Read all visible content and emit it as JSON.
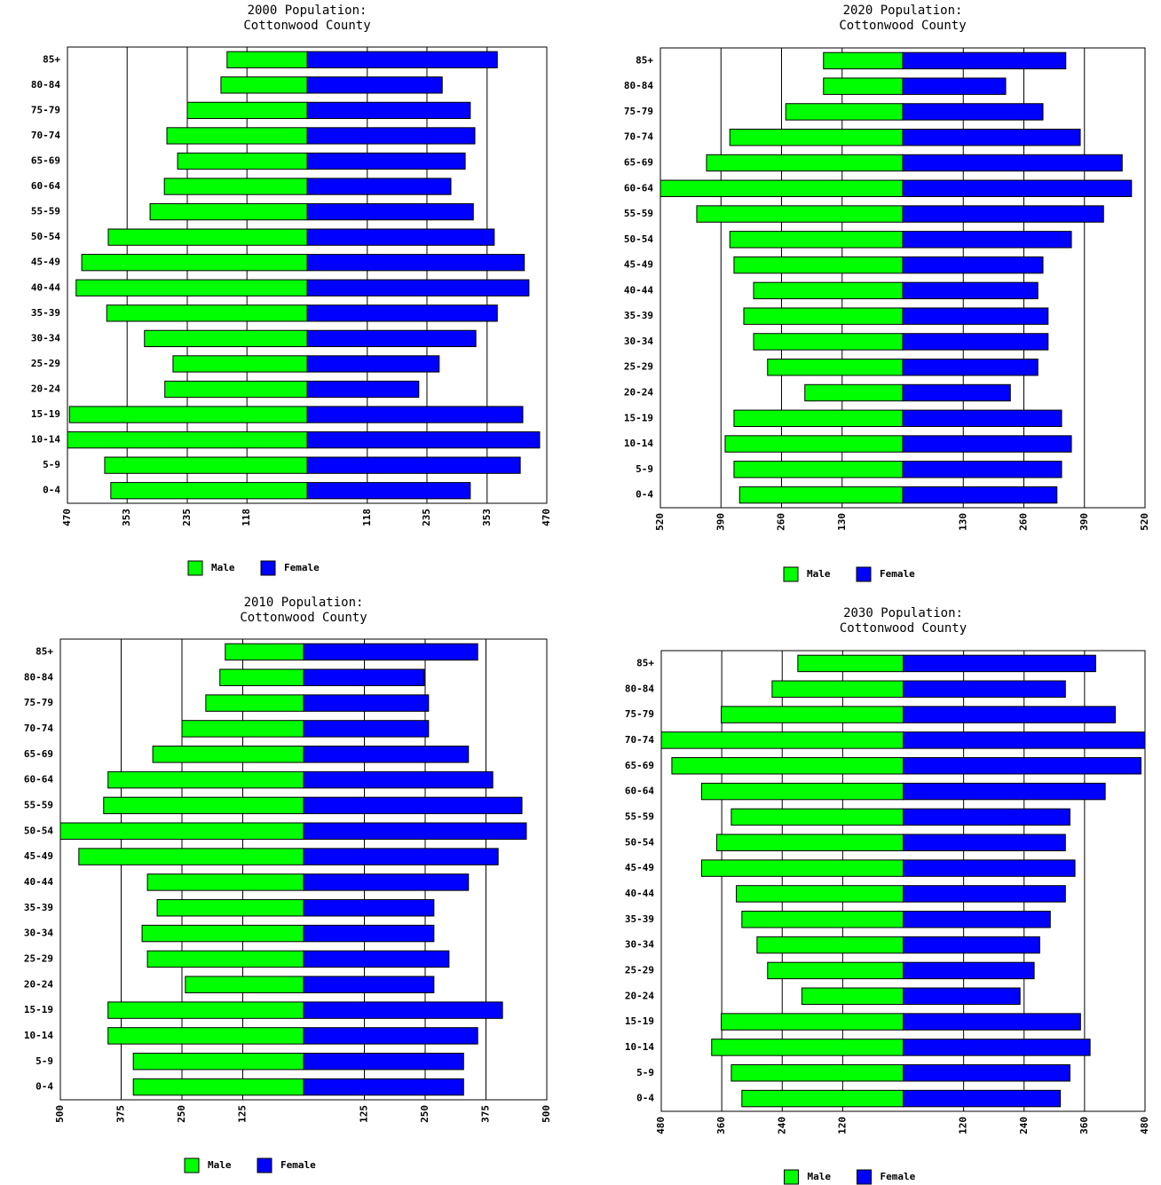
{
  "chart_data": [
    {
      "type": "pyramid",
      "title": "2000 Population:",
      "subtitle": "Cottonwood County",
      "categories": [
        "85+",
        "80-84",
        "75-79",
        "70-74",
        "65-69",
        "60-64",
        "55-59",
        "50-54",
        "45-49",
        "40-44",
        "35-39",
        "30-34",
        "25-29",
        "20-24",
        "15-19",
        "10-14",
        "5-9",
        "0-4"
      ],
      "series": [
        {
          "name": "Male",
          "color": "#00ff00",
          "values": [
            157,
            169,
            235,
            275,
            254,
            280,
            308,
            390,
            442,
            453,
            393,
            319,
            263,
            279,
            466,
            470,
            397,
            385
          ]
        },
        {
          "name": "Female",
          "color": "#0000ff",
          "values": [
            373,
            265,
            320,
            329,
            310,
            282,
            326,
            367,
            426,
            435,
            373,
            331,
            259,
            219,
            423,
            456,
            418,
            320
          ]
        }
      ],
      "xlim": [
        0,
        470
      ],
      "xticks": [
        118,
        235,
        353,
        470
      ],
      "grid": true
    },
    {
      "type": "pyramid",
      "title": "2020 Population:",
      "subtitle": "Cottonwood County",
      "categories": [
        "85+",
        "80-84",
        "75-79",
        "70-74",
        "65-69",
        "60-64",
        "55-59",
        "50-54",
        "45-49",
        "40-44",
        "35-39",
        "30-34",
        "25-29",
        "20-24",
        "15-19",
        "10-14",
        "5-9",
        "0-4"
      ],
      "series": [
        {
          "name": "Male",
          "color": "#00ff00",
          "values": [
            170,
            170,
            251,
            371,
            421,
            520,
            442,
            371,
            362,
            320,
            341,
            320,
            290,
            210,
            362,
            381,
            362,
            350
          ]
        },
        {
          "name": "Female",
          "color": "#0000ff",
          "values": [
            350,
            221,
            301,
            381,
            471,
            491,
            431,
            362,
            301,
            290,
            312,
            312,
            290,
            231,
            341,
            362,
            341,
            331
          ]
        }
      ],
      "xlim": [
        0,
        520
      ],
      "xticks": [
        130,
        260,
        390,
        520
      ],
      "grid": true
    },
    {
      "type": "pyramid",
      "title": "2010 Population:",
      "subtitle": "Cottonwood County",
      "categories": [
        "85+",
        "80-84",
        "75-79",
        "70-74",
        "65-69",
        "60-64",
        "55-59",
        "50-54",
        "45-49",
        "40-44",
        "35-39",
        "30-34",
        "25-29",
        "20-24",
        "15-19",
        "10-14",
        "5-9",
        "0-4"
      ],
      "series": [
        {
          "name": "Male",
          "color": "#00ff00",
          "values": [
            161,
            172,
            201,
            250,
            310,
            402,
            411,
            500,
            462,
            321,
            301,
            332,
            321,
            243,
            402,
            402,
            350,
            350
          ]
        },
        {
          "name": "Female",
          "color": "#0000ff",
          "values": [
            358,
            248,
            257,
            257,
            339,
            389,
            449,
            458,
            400,
            339,
            268,
            268,
            299,
            268,
            409,
            358,
            329,
            329
          ]
        }
      ],
      "xlim": [
        0,
        500
      ],
      "xticks": [
        125,
        250,
        375,
        500
      ],
      "grid": true
    },
    {
      "type": "pyramid",
      "title": "2030 Population:",
      "subtitle": "Cottonwood County",
      "categories": [
        "85+",
        "80-84",
        "75-79",
        "70-74",
        "65-69",
        "60-64",
        "55-59",
        "50-54",
        "45-49",
        "40-44",
        "35-39",
        "30-34",
        "25-29",
        "20-24",
        "15-19",
        "10-14",
        "5-9",
        "0-4"
      ],
      "series": [
        {
          "name": "Male",
          "color": "#00ff00",
          "values": [
            209,
            260,
            361,
            480,
            459,
            400,
            341,
            370,
            400,
            331,
            320,
            290,
            269,
            201,
            361,
            380,
            341,
            320
          ]
        },
        {
          "name": "Female",
          "color": "#0000ff",
          "values": [
            382,
            322,
            421,
            480,
            472,
            401,
            331,
            322,
            341,
            322,
            292,
            271,
            260,
            232,
            352,
            371,
            331,
            312
          ]
        }
      ],
      "xlim": [
        0,
        480
      ],
      "xticks": [
        120,
        240,
        360,
        480
      ],
      "grid": true
    }
  ]
}
